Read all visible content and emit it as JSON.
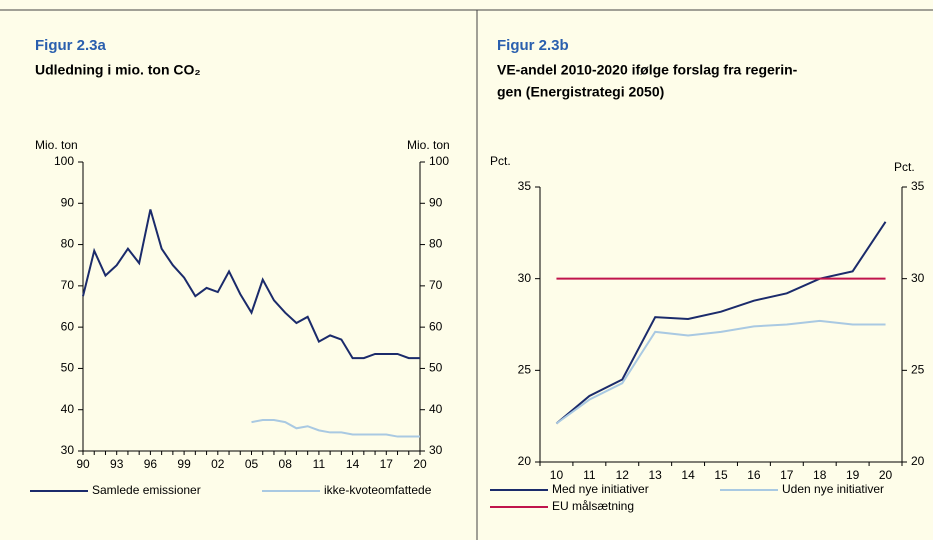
{
  "chart_data": [
    {
      "type": "line",
      "title": "Figur 2.3a",
      "subtitle": [
        "Udledning i mio. ton CO₂"
      ],
      "ylabel": "Mio. ton",
      "y2label": "Mio. ton",
      "categories": [
        "90",
        null,
        null,
        "93",
        null,
        null,
        "96",
        null,
        null,
        "99",
        null,
        null,
        "02",
        null,
        null,
        "05",
        null,
        null,
        "08",
        null,
        null,
        "11",
        null,
        null,
        "14",
        null,
        null,
        "17",
        null,
        null,
        "20"
      ],
      "series": [
        {
          "name": "Samlede emissioner",
          "color": "#1b2b6b",
          "values": [
            67.5,
            78.5,
            72.5,
            75,
            79,
            75.5,
            88.5,
            79,
            75,
            72,
            67.5,
            69.5,
            68.5,
            73.5,
            68,
            63.5,
            71.5,
            66.5,
            63.5,
            61,
            62.5,
            56.5,
            58,
            57,
            52.5,
            52.5,
            53.5,
            53.5,
            53.5,
            52.5,
            52.5
          ]
        },
        {
          "name": "ikke-kvoteomfattede",
          "color": "#a9c9e2",
          "values": [
            null,
            null,
            null,
            null,
            null,
            null,
            null,
            null,
            null,
            null,
            null,
            null,
            null,
            null,
            null,
            37,
            37.5,
            37.5,
            37,
            35.5,
            36,
            35,
            34.5,
            34.5,
            34,
            34,
            34,
            34,
            33.5,
            33.5,
            33.5
          ]
        }
      ],
      "ylim": [
        30,
        100
      ],
      "yticks": [
        30,
        40,
        50,
        60,
        70,
        80,
        90,
        100
      ]
    },
    {
      "type": "line",
      "title": "Figur 2.3b",
      "subtitle": [
        "VE-andel 2010-2020 ifølge forslag fra regerin-",
        "gen (Energistrategi 2050)"
      ],
      "ylabel": "Pct.",
      "y2label": "Pct.",
      "categories": [
        "10",
        "11",
        "12",
        "13",
        "14",
        "15",
        "16",
        "17",
        "18",
        "19",
        "20"
      ],
      "series": [
        {
          "name": "Med nye initiativer",
          "color": "#1b2b6b",
          "values": [
            22.1,
            23.6,
            24.5,
            27.9,
            27.8,
            28.2,
            28.8,
            29.2,
            30,
            30.4,
            33.1
          ]
        },
        {
          "name": "Uden nye initiativer",
          "color": "#a9c9e2",
          "values": [
            22.1,
            23.4,
            24.3,
            27.1,
            26.9,
            27.1,
            27.4,
            27.5,
            27.7,
            27.5,
            27.5
          ]
        },
        {
          "name": "EU målsætning",
          "color": "#c0144c",
          "values": [
            30,
            30,
            30,
            30,
            30,
            30,
            30,
            30,
            30,
            30,
            30
          ]
        }
      ],
      "ylim": [
        20,
        35
      ],
      "yticks": [
        20,
        25,
        30,
        35
      ]
    }
  ]
}
